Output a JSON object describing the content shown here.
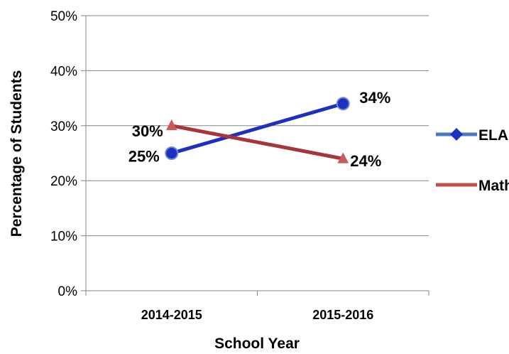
{
  "chart_data": {
    "type": "line",
    "categories": [
      "2014-2015",
      "2015-2016"
    ],
    "series": [
      {
        "name": "ELA",
        "values": [
          25,
          34
        ],
        "labels": [
          "25%",
          "34%"
        ],
        "color": "#1f2fbf",
        "marker": "circle"
      },
      {
        "name": "Math",
        "values": [
          30,
          24
        ],
        "labels": [
          "30%",
          "24%"
        ],
        "color": "#a8353a",
        "marker": "triangle"
      }
    ],
    "title": "",
    "xlabel": "School Year",
    "ylabel": "Percentage of Students",
    "ylim": [
      0,
      50
    ],
    "yticks": [
      0,
      10,
      20,
      30,
      40,
      50
    ],
    "ytick_labels": [
      "0%",
      "10%",
      "20%",
      "30%",
      "40%",
      "50%"
    ],
    "grid": true,
    "legend": "right",
    "legend_colors": {
      "ELA": "#4a78c2",
      "Math": "#c0504d"
    }
  }
}
